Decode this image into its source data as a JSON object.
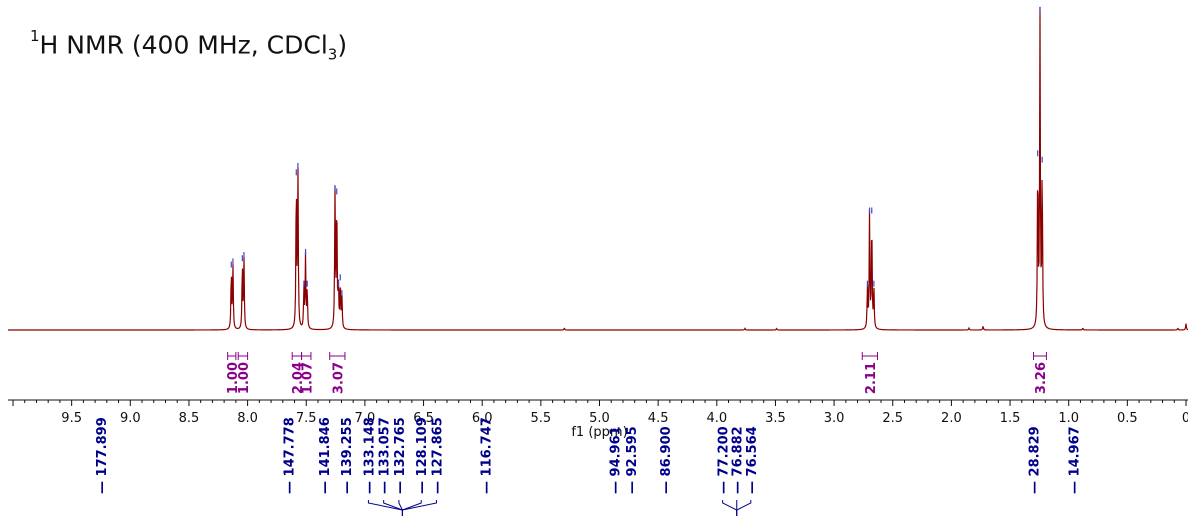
{
  "title": {
    "sup": "1",
    "main": "H NMR (400 MHz, CDCl",
    "sub": "3",
    "close": ")"
  },
  "colors": {
    "spectrum": "#8b0000",
    "integral": "#8b008b",
    "peak_label": "#00008b",
    "peak_tick": "#4444cc",
    "axis": "#111111"
  },
  "chart_data": {
    "type": "line",
    "xlabel": "f1 (ppm)",
    "xlim": [
      10.0,
      0.0
    ],
    "x_reversed": true,
    "ticks": [
      "9.5",
      "9.0",
      "8.5",
      "8.0",
      "7.5",
      "7.0",
      "6.5",
      "6.0",
      "5.5",
      "5.0",
      "4.5",
      "4.0",
      "3.5",
      "3.0",
      "2.5",
      "2.0",
      "1.5",
      "1.0",
      "0.5",
      "0"
    ],
    "tick_values": [
      9.5,
      9.0,
      8.5,
      8.0,
      7.5,
      7.0,
      6.5,
      6.0,
      5.5,
      5.0,
      4.5,
      4.0,
      3.5,
      3.0,
      2.5,
      2.0,
      1.5,
      1.0,
      0.5,
      0.0
    ],
    "ylim": [
      0,
      1.0
    ],
    "peaks": [
      {
        "ppm": 8.139,
        "height": 0.19
      },
      {
        "ppm": 8.125,
        "height": 0.2
      },
      {
        "ppm": 8.045,
        "height": 0.21
      },
      {
        "ppm": 8.031,
        "height": 0.22
      },
      {
        "ppm": 7.585,
        "height": 0.48
      },
      {
        "ppm": 7.571,
        "height": 0.5
      },
      {
        "ppm": 7.52,
        "height": 0.13
      },
      {
        "ppm": 7.506,
        "height": 0.23
      },
      {
        "ppm": 7.492,
        "height": 0.13
      },
      {
        "ppm": 7.255,
        "height": 0.43
      },
      {
        "ppm": 7.24,
        "height": 0.42
      },
      {
        "ppm": 7.226,
        "height": 0.13
      },
      {
        "ppm": 7.21,
        "height": 0.15
      },
      {
        "ppm": 7.196,
        "height": 0.1
      },
      {
        "ppm": 5.3,
        "height": 0.006
      },
      {
        "ppm": 3.76,
        "height": 0.005
      },
      {
        "ppm": 3.49,
        "height": 0.005
      },
      {
        "ppm": 2.716,
        "height": 0.13
      },
      {
        "ppm": 2.698,
        "height": 0.36
      },
      {
        "ppm": 2.679,
        "height": 0.36
      },
      {
        "ppm": 2.661,
        "height": 0.13
      },
      {
        "ppm": 1.85,
        "height": 0.006
      },
      {
        "ppm": 1.73,
        "height": 0.012
      },
      {
        "ppm": 1.264,
        "height": 0.54
      },
      {
        "ppm": 1.245,
        "height": 0.99
      },
      {
        "ppm": 1.226,
        "height": 0.52
      },
      {
        "ppm": 0.88,
        "height": 0.006
      },
      {
        "ppm": 0.07,
        "height": 0.006
      },
      {
        "ppm": 0.0,
        "height": 0.02
      }
    ],
    "integrals": [
      {
        "from": 8.17,
        "to": 8.1,
        "value": "1.00"
      },
      {
        "from": 8.08,
        "to": 8.0,
        "value": "1.00"
      },
      {
        "from": 7.62,
        "to": 7.54,
        "value": "2.04"
      },
      {
        "from": 7.54,
        "to": 7.46,
        "value": "1.07"
      },
      {
        "from": 7.3,
        "to": 7.17,
        "value": "3.07"
      },
      {
        "from": 2.76,
        "to": 2.63,
        "value": "2.11"
      },
      {
        "from": 1.3,
        "to": 1.19,
        "value": "3.26"
      }
    ],
    "carbon_labels": [
      {
        "value": "177.899",
        "ppm": 9.25
      },
      {
        "value": "147.778",
        "ppm": 7.65
      },
      {
        "value": "141.846",
        "ppm": 7.35
      },
      {
        "value": "139.255",
        "ppm": 7.16
      },
      {
        "value": "133.148",
        "ppm": 6.97
      },
      {
        "value": "133.057",
        "ppm": 6.84
      },
      {
        "value": "132.765",
        "ppm": 6.71
      },
      {
        "value": "128.109",
        "ppm": 6.52
      },
      {
        "value": "127.865",
        "ppm": 6.39
      },
      {
        "value": "116.747",
        "ppm": 5.97
      },
      {
        "value": "94.961",
        "ppm": 4.87
      },
      {
        "value": "92.595",
        "ppm": 4.73
      },
      {
        "value": "86.900",
        "ppm": 4.44
      },
      {
        "value": "77.200",
        "ppm": 3.95
      },
      {
        "value": "76.882",
        "ppm": 3.83
      },
      {
        "value": "76.564",
        "ppm": 3.71
      },
      {
        "value": "28.829",
        "ppm": 1.3
      },
      {
        "value": "14.967",
        "ppm": 0.96
      }
    ]
  }
}
